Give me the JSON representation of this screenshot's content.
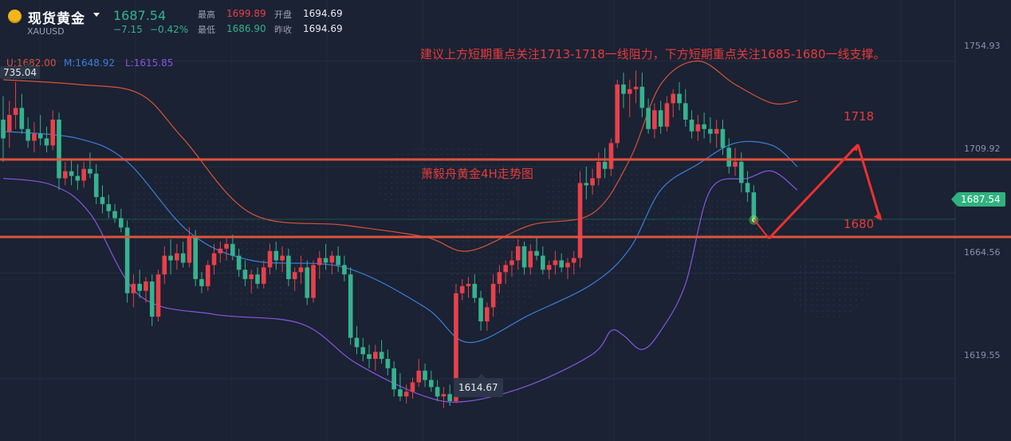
{
  "header": {
    "name": "现货黄金",
    "symbol": "XAUUSD",
    "last_price": "1687.54",
    "change": "−7.15",
    "change_pct": "−0.42%",
    "high_label": "最高",
    "high_value": "1699.89",
    "low_label": "最低",
    "low_value": "1686.90",
    "open_label": "开盘",
    "open_value": "1694.69",
    "prev_close_label": "昨收",
    "prev_close_value": "1694.69"
  },
  "legend": {
    "upper": "U:1682.00",
    "middle": "M:1648.92",
    "lower": "L:1615.85"
  },
  "annotations": {
    "advice": "建议上方短期重点关注1713-1718一线阻力，下方短期重点关注1685-1680一线支撑。",
    "watermark": "萧毅舟黄金4H走势图",
    "level_high": "1718",
    "level_low": "1680",
    "left_high_label": "735.04",
    "low_callout": "1614.67",
    "current_price_tag": "1687.54"
  },
  "colors": {
    "background": "#1a2233",
    "up_candle": "#e8404a",
    "down_candle": "#36b28e",
    "upper_band": "#d9523a",
    "middle_band": "#3d7fd9",
    "lower_band": "#8a55e0",
    "level_line": "#e0533c",
    "arrow": "#f03030"
  },
  "chart_data": {
    "type": "candlestick",
    "title": "萧毅舟黄金4H走势图",
    "yaxis_ticks": [
      1754.93,
      1709.92,
      1664.56,
      1619.55
    ],
    "ylim": [
      1593,
      1781
    ],
    "horizontal_levels": [
      1713,
      1680
    ],
    "arrow_path": [
      1680,
      1718,
      1692
    ],
    "current_price": 1687.54,
    "low_marker": 1614.67,
    "ohlc": [
      [
        1730,
        1740,
        1712,
        1722
      ],
      [
        1725,
        1738,
        1718,
        1732
      ],
      [
        1732,
        1746,
        1726,
        1735
      ],
      [
        1735,
        1741,
        1724,
        1726
      ],
      [
        1726,
        1731,
        1718,
        1721
      ],
      [
        1721,
        1729,
        1716,
        1724
      ],
      [
        1724,
        1732,
        1719,
        1722
      ],
      [
        1722,
        1727,
        1716,
        1719
      ],
      [
        1719,
        1734,
        1717,
        1730
      ],
      [
        1730,
        1733,
        1700,
        1705
      ],
      [
        1705,
        1712,
        1702,
        1708
      ],
      [
        1708,
        1713,
        1702,
        1706
      ],
      [
        1706,
        1711,
        1700,
        1704
      ],
      [
        1704,
        1712,
        1701,
        1709
      ],
      [
        1709,
        1716,
        1705,
        1707
      ],
      [
        1707,
        1711,
        1694,
        1697
      ],
      [
        1697,
        1702,
        1690,
        1694
      ],
      [
        1694,
        1698,
        1688,
        1691
      ],
      [
        1691,
        1694,
        1686,
        1688
      ],
      [
        1688,
        1692,
        1682,
        1684
      ],
      [
        1684,
        1687,
        1652,
        1656
      ],
      [
        1656,
        1664,
        1650,
        1660
      ],
      [
        1660,
        1666,
        1654,
        1657
      ],
      [
        1657,
        1663,
        1652,
        1661
      ],
      [
        1661,
        1664,
        1642,
        1646
      ],
      [
        1646,
        1666,
        1644,
        1664
      ],
      [
        1664,
        1676,
        1660,
        1672
      ],
      [
        1672,
        1679,
        1664,
        1670
      ],
      [
        1670,
        1677,
        1666,
        1673
      ],
      [
        1673,
        1678,
        1667,
        1669
      ],
      [
        1669,
        1684,
        1667,
        1680
      ],
      [
        1680,
        1683,
        1659,
        1662
      ],
      [
        1662,
        1665,
        1656,
        1659
      ],
      [
        1659,
        1670,
        1657,
        1668
      ],
      [
        1668,
        1677,
        1664,
        1673
      ],
      [
        1673,
        1678,
        1669,
        1675
      ],
      [
        1675,
        1680,
        1670,
        1677
      ],
      [
        1677,
        1681,
        1670,
        1672
      ],
      [
        1672,
        1675,
        1663,
        1666
      ],
      [
        1666,
        1670,
        1659,
        1662
      ],
      [
        1662,
        1666,
        1656,
        1664
      ],
      [
        1664,
        1667,
        1658,
        1660
      ],
      [
        1660,
        1670,
        1658,
        1667
      ],
      [
        1667,
        1677,
        1664,
        1674
      ],
      [
        1674,
        1678,
        1666,
        1670
      ],
      [
        1670,
        1676,
        1665,
        1672
      ],
      [
        1672,
        1675,
        1659,
        1662
      ],
      [
        1662,
        1667,
        1657,
        1665
      ],
      [
        1665,
        1672,
        1660,
        1667
      ],
      [
        1667,
        1670,
        1651,
        1654
      ],
      [
        1654,
        1670,
        1652,
        1668
      ],
      [
        1668,
        1674,
        1662,
        1671
      ],
      [
        1671,
        1677,
        1666,
        1669
      ],
      [
        1669,
        1674,
        1664,
        1672
      ],
      [
        1672,
        1676,
        1665,
        1668
      ],
      [
        1668,
        1672,
        1661,
        1664
      ],
      [
        1664,
        1667,
        1634,
        1637
      ],
      [
        1637,
        1642,
        1630,
        1633
      ],
      [
        1633,
        1637,
        1627,
        1630
      ],
      [
        1630,
        1634,
        1624,
        1628
      ],
      [
        1628,
        1634,
        1623,
        1631
      ],
      [
        1631,
        1636,
        1626,
        1628
      ],
      [
        1628,
        1632,
        1621,
        1624
      ],
      [
        1624,
        1627,
        1612,
        1615
      ],
      [
        1615,
        1622,
        1610,
        1612
      ],
      [
        1612,
        1617,
        1609,
        1614
      ],
      [
        1614,
        1620,
        1611,
        1618
      ],
      [
        1618,
        1628,
        1616,
        1623
      ],
      [
        1623,
        1626,
        1616,
        1619
      ],
      [
        1619,
        1623,
        1614,
        1616
      ],
      [
        1616,
        1619,
        1610,
        1612
      ],
      [
        1612,
        1616,
        1607,
        1613
      ],
      [
        1613,
        1617,
        1608,
        1610
      ],
      [
        1610,
        1660,
        1609,
        1656
      ],
      [
        1656,
        1662,
        1653,
        1659
      ],
      [
        1659,
        1663,
        1654,
        1660
      ],
      [
        1660,
        1664,
        1652,
        1654
      ],
      [
        1654,
        1657,
        1640,
        1644
      ],
      [
        1644,
        1652,
        1640,
        1650
      ],
      [
        1650,
        1664,
        1646,
        1660
      ],
      [
        1660,
        1668,
        1656,
        1665
      ],
      [
        1665,
        1670,
        1660,
        1668
      ],
      [
        1668,
        1674,
        1663,
        1670
      ],
      [
        1670,
        1679,
        1666,
        1676
      ],
      [
        1676,
        1678,
        1664,
        1667
      ],
      [
        1667,
        1677,
        1664,
        1674
      ],
      [
        1674,
        1680,
        1670,
        1672
      ],
      [
        1672,
        1676,
        1664,
        1666
      ],
      [
        1666,
        1670,
        1662,
        1668
      ],
      [
        1668,
        1674,
        1664,
        1670
      ],
      [
        1670,
        1673,
        1665,
        1667
      ],
      [
        1667,
        1671,
        1662,
        1669
      ],
      [
        1669,
        1674,
        1664,
        1671
      ],
      [
        1671,
        1708,
        1667,
        1703
      ],
      [
        1703,
        1710,
        1696,
        1702
      ],
      [
        1702,
        1709,
        1698,
        1705
      ],
      [
        1705,
        1716,
        1702,
        1712
      ],
      [
        1712,
        1718,
        1705,
        1709
      ],
      [
        1709,
        1722,
        1706,
        1720
      ],
      [
        1720,
        1747,
        1718,
        1745
      ],
      [
        1745,
        1750,
        1735,
        1741
      ],
      [
        1741,
        1747,
        1731,
        1743
      ],
      [
        1743,
        1751,
        1737,
        1744
      ],
      [
        1744,
        1750,
        1731,
        1735
      ],
      [
        1735,
        1739,
        1724,
        1726
      ],
      [
        1726,
        1737,
        1722,
        1734
      ],
      [
        1734,
        1738,
        1724,
        1727
      ],
      [
        1727,
        1740,
        1725,
        1737
      ],
      [
        1737,
        1743,
        1731,
        1741
      ],
      [
        1741,
        1746,
        1734,
        1737
      ],
      [
        1737,
        1743,
        1727,
        1730
      ],
      [
        1730,
        1734,
        1722,
        1725
      ],
      [
        1725,
        1732,
        1721,
        1728
      ],
      [
        1728,
        1733,
        1722,
        1726
      ],
      [
        1726,
        1731,
        1720,
        1724
      ],
      [
        1724,
        1730,
        1718,
        1726
      ],
      [
        1726,
        1730,
        1715,
        1718
      ],
      [
        1718,
        1722,
        1707,
        1710
      ],
      [
        1710,
        1718,
        1706,
        1712
      ],
      [
        1712,
        1716,
        1699,
        1703
      ],
      [
        1703,
        1708,
        1695,
        1699
      ],
      [
        1699,
        1702,
        1686,
        1688
      ]
    ],
    "bollinger": {
      "upper_knots": [
        [
          0,
          1747
        ],
        [
          12,
          1745
        ],
        [
          22,
          1741
        ],
        [
          29,
          1722
        ],
        [
          40,
          1690
        ],
        [
          55,
          1685
        ],
        [
          68,
          1680
        ],
        [
          75,
          1674
        ],
        [
          85,
          1685
        ],
        [
          95,
          1690
        ],
        [
          101,
          1713
        ],
        [
          106,
          1745
        ],
        [
          112,
          1755
        ],
        [
          118,
          1745
        ],
        [
          124,
          1737
        ],
        [
          128,
          1738
        ]
      ],
      "middle_knots": [
        [
          0,
          1725
        ],
        [
          12,
          1722
        ],
        [
          20,
          1712
        ],
        [
          30,
          1682
        ],
        [
          40,
          1670
        ],
        [
          55,
          1667
        ],
        [
          68,
          1650
        ],
        [
          75,
          1635
        ],
        [
          85,
          1647
        ],
        [
          95,
          1660
        ],
        [
          101,
          1675
        ],
        [
          106,
          1700
        ],
        [
          112,
          1711
        ],
        [
          118,
          1720
        ],
        [
          124,
          1719
        ],
        [
          128,
          1710
        ]
      ],
      "lower_knots": [
        [
          0,
          1705
        ],
        [
          8,
          1702
        ],
        [
          14,
          1690
        ],
        [
          22,
          1655
        ],
        [
          34,
          1647
        ],
        [
          48,
          1643
        ],
        [
          57,
          1626
        ],
        [
          68,
          1612
        ],
        [
          75,
          1610
        ],
        [
          85,
          1617
        ],
        [
          95,
          1630
        ],
        [
          98,
          1640
        ],
        [
          100,
          1638
        ],
        [
          103,
          1632
        ],
        [
          106,
          1640
        ],
        [
          110,
          1660
        ],
        [
          114,
          1700
        ],
        [
          120,
          1705
        ],
        [
          124,
          1708
        ],
        [
          128,
          1700
        ]
      ]
    }
  }
}
